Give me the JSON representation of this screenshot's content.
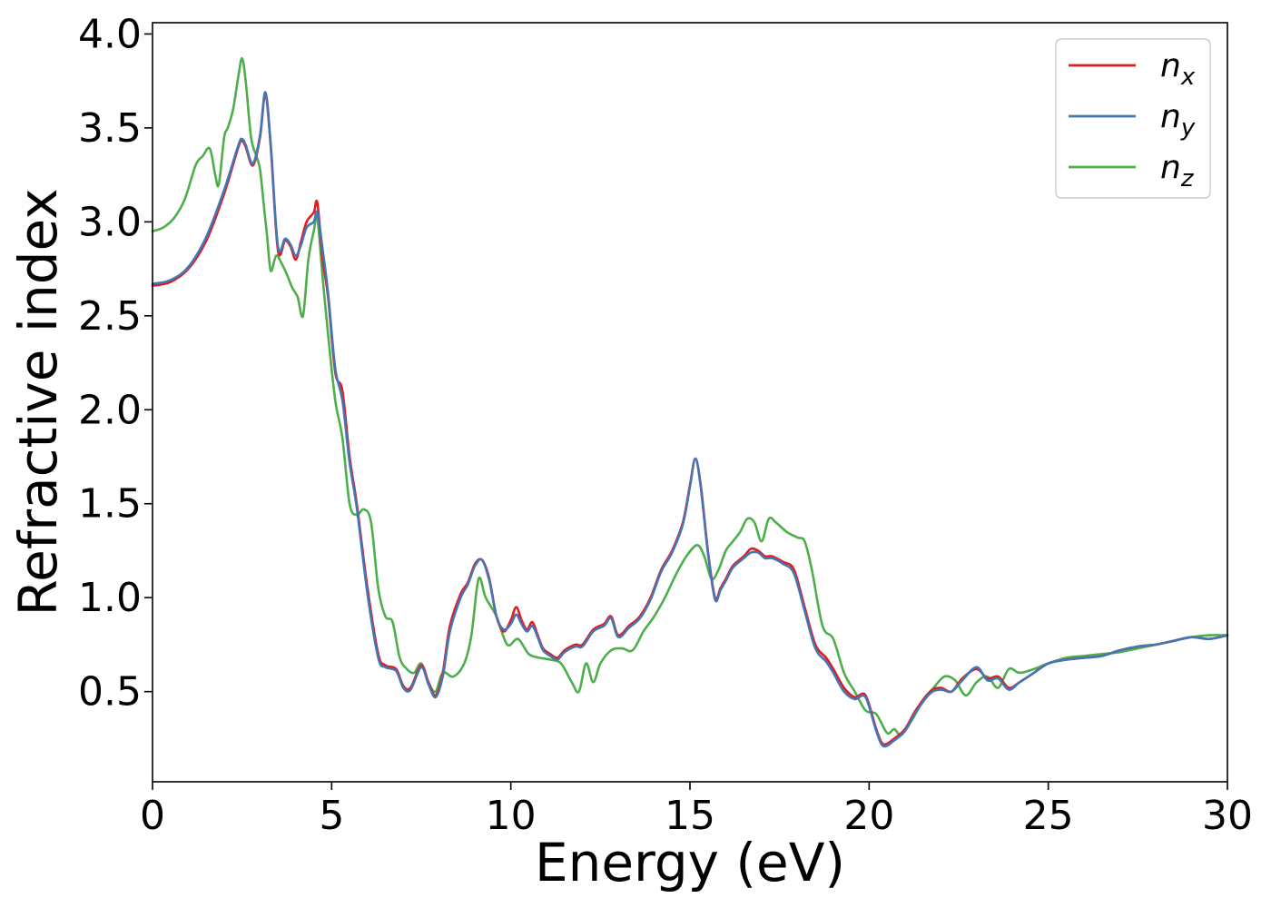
{
  "chart_data": {
    "type": "line",
    "title": "",
    "xlabel": "Energy (eV)",
    "ylabel": "Refractive index",
    "xlim": [
      0,
      30
    ],
    "ylim": [
      0.02,
      4.06
    ],
    "xticks": [
      0,
      5,
      10,
      15,
      20,
      25,
      30
    ],
    "yticks": [
      0.5,
      1.0,
      1.5,
      2.0,
      2.5,
      3.0,
      3.5,
      4.0
    ],
    "grid": false,
    "legend_position": "top-right",
    "series": [
      {
        "name": "n_x",
        "legend_base": "n",
        "legend_sub": "x",
        "color": "#e41a1c",
        "x": [
          0,
          0.5,
          1.0,
          1.5,
          2.0,
          2.4,
          2.5,
          2.6,
          2.8,
          3.0,
          3.15,
          3.3,
          3.5,
          3.7,
          3.85,
          4.0,
          4.15,
          4.3,
          4.5,
          4.6,
          4.75,
          4.9,
          5.1,
          5.3,
          5.5,
          5.7,
          6.0,
          6.3,
          6.5,
          6.8,
          7.0,
          7.2,
          7.5,
          7.7,
          7.9,
          8.1,
          8.3,
          8.6,
          8.8,
          9.0,
          9.2,
          9.4,
          9.6,
          9.8,
          10.0,
          10.15,
          10.3,
          10.45,
          10.6,
          10.75,
          10.9,
          11.1,
          11.3,
          11.5,
          11.8,
          12.0,
          12.3,
          12.6,
          12.8,
          13.0,
          13.3,
          13.6,
          13.9,
          14.2,
          14.5,
          14.8,
          15.0,
          15.15,
          15.3,
          15.5,
          15.7,
          15.85,
          16.0,
          16.2,
          16.5,
          16.7,
          16.9,
          17.1,
          17.3,
          17.6,
          17.9,
          18.2,
          18.5,
          18.8,
          19.0,
          19.3,
          19.6,
          19.9,
          20.2,
          20.4,
          20.7,
          21.0,
          21.3,
          21.7,
          22.0,
          22.3,
          22.6,
          23.0,
          23.3,
          23.6,
          23.9,
          24.2,
          24.6,
          25.0,
          25.5,
          26.0,
          26.5,
          27.0,
          27.5,
          28.0,
          28.5,
          29.0,
          29.5,
          30.0
        ],
        "y": [
          2.66,
          2.68,
          2.75,
          2.9,
          3.15,
          3.4,
          3.43,
          3.4,
          3.3,
          3.45,
          3.68,
          3.4,
          2.85,
          2.9,
          2.87,
          2.8,
          2.9,
          3.0,
          3.05,
          3.1,
          2.8,
          2.6,
          2.2,
          2.1,
          1.75,
          1.5,
          1.05,
          0.7,
          0.64,
          0.62,
          0.53,
          0.52,
          0.64,
          0.55,
          0.48,
          0.6,
          0.85,
          1.02,
          1.08,
          1.18,
          1.2,
          1.1,
          0.9,
          0.82,
          0.88,
          0.95,
          0.88,
          0.83,
          0.87,
          0.8,
          0.73,
          0.7,
          0.68,
          0.72,
          0.75,
          0.75,
          0.83,
          0.86,
          0.9,
          0.8,
          0.85,
          0.9,
          1.0,
          1.15,
          1.25,
          1.4,
          1.6,
          1.74,
          1.6,
          1.25,
          1.0,
          1.05,
          1.1,
          1.17,
          1.22,
          1.26,
          1.25,
          1.22,
          1.22,
          1.19,
          1.15,
          0.95,
          0.75,
          0.68,
          0.62,
          0.52,
          0.47,
          0.48,
          0.3,
          0.22,
          0.25,
          0.3,
          0.4,
          0.5,
          0.52,
          0.5,
          0.57,
          0.62,
          0.57,
          0.58,
          0.52,
          0.55,
          0.6,
          0.65,
          0.67,
          0.68,
          0.69,
          0.72,
          0.74,
          0.75,
          0.77,
          0.79,
          0.78,
          0.8
        ]
      },
      {
        "name": "n_y",
        "legend_base": "n",
        "legend_sub": "y",
        "color": "#4575b4",
        "x": [
          0,
          0.5,
          1.0,
          1.5,
          2.0,
          2.4,
          2.5,
          2.6,
          2.8,
          3.0,
          3.15,
          3.3,
          3.5,
          3.7,
          3.85,
          4.0,
          4.15,
          4.3,
          4.5,
          4.6,
          4.75,
          4.9,
          5.1,
          5.3,
          5.5,
          5.7,
          6.0,
          6.3,
          6.5,
          6.8,
          7.0,
          7.2,
          7.5,
          7.7,
          7.9,
          8.1,
          8.3,
          8.6,
          8.8,
          9.0,
          9.2,
          9.4,
          9.6,
          9.8,
          10.0,
          10.15,
          10.3,
          10.45,
          10.6,
          10.75,
          10.9,
          11.1,
          11.3,
          11.5,
          11.8,
          12.0,
          12.3,
          12.6,
          12.8,
          13.0,
          13.3,
          13.6,
          13.9,
          14.2,
          14.5,
          14.8,
          15.0,
          15.15,
          15.3,
          15.5,
          15.7,
          15.85,
          16.0,
          16.2,
          16.5,
          16.7,
          16.9,
          17.1,
          17.3,
          17.6,
          17.9,
          18.2,
          18.5,
          18.8,
          19.0,
          19.3,
          19.6,
          19.9,
          20.2,
          20.4,
          20.7,
          21.0,
          21.3,
          21.7,
          22.0,
          22.3,
          22.6,
          23.0,
          23.3,
          23.6,
          23.9,
          24.2,
          24.6,
          25.0,
          25.5,
          26.0,
          26.5,
          27.0,
          27.5,
          28.0,
          28.5,
          29.0,
          29.5,
          30.0
        ],
        "y": [
          2.67,
          2.69,
          2.76,
          2.92,
          3.17,
          3.41,
          3.44,
          3.41,
          3.31,
          3.46,
          3.69,
          3.41,
          2.87,
          2.91,
          2.88,
          2.82,
          2.88,
          2.97,
          3.0,
          3.05,
          2.85,
          2.62,
          2.22,
          2.05,
          1.72,
          1.48,
          1.02,
          0.68,
          0.63,
          0.61,
          0.52,
          0.51,
          0.63,
          0.54,
          0.47,
          0.58,
          0.82,
          1.0,
          1.07,
          1.17,
          1.2,
          1.09,
          0.9,
          0.83,
          0.86,
          0.91,
          0.86,
          0.82,
          0.85,
          0.79,
          0.72,
          0.69,
          0.67,
          0.71,
          0.74,
          0.74,
          0.82,
          0.85,
          0.89,
          0.79,
          0.84,
          0.89,
          0.99,
          1.14,
          1.24,
          1.39,
          1.59,
          1.74,
          1.59,
          1.24,
          0.99,
          1.04,
          1.09,
          1.16,
          1.21,
          1.24,
          1.24,
          1.21,
          1.21,
          1.18,
          1.13,
          0.93,
          0.73,
          0.66,
          0.6,
          0.5,
          0.46,
          0.47,
          0.29,
          0.21,
          0.24,
          0.29,
          0.39,
          0.49,
          0.51,
          0.5,
          0.56,
          0.63,
          0.56,
          0.57,
          0.51,
          0.55,
          0.6,
          0.65,
          0.67,
          0.68,
          0.69,
          0.72,
          0.74,
          0.75,
          0.77,
          0.79,
          0.78,
          0.8
        ]
      },
      {
        "name": "n_z",
        "legend_base": "n",
        "legend_sub": "z",
        "color": "#4daf4a",
        "x": [
          0,
          0.3,
          0.6,
          0.9,
          1.2,
          1.4,
          1.6,
          1.75,
          1.85,
          2.0,
          2.1,
          2.25,
          2.4,
          2.5,
          2.6,
          2.75,
          2.9,
          3.0,
          3.1,
          3.2,
          3.3,
          3.45,
          3.6,
          3.75,
          3.9,
          4.05,
          4.2,
          4.35,
          4.5,
          4.6,
          4.75,
          4.9,
          5.1,
          5.3,
          5.5,
          5.7,
          5.9,
          6.1,
          6.3,
          6.5,
          6.7,
          6.9,
          7.1,
          7.3,
          7.5,
          7.7,
          7.9,
          8.1,
          8.4,
          8.7,
          8.9,
          9.1,
          9.3,
          9.6,
          9.9,
          10.2,
          10.5,
          10.8,
          11.1,
          11.4,
          11.7,
          11.9,
          12.1,
          12.3,
          12.5,
          12.8,
          13.1,
          13.4,
          13.7,
          14.0,
          14.3,
          14.6,
          14.9,
          15.2,
          15.4,
          15.6,
          15.8,
          16.0,
          16.2,
          16.4,
          16.6,
          16.8,
          17.0,
          17.2,
          17.4,
          17.7,
          18.0,
          18.2,
          18.4,
          18.7,
          19.0,
          19.3,
          19.6,
          19.9,
          20.2,
          20.5,
          20.7,
          20.9,
          21.2,
          21.5,
          21.8,
          22.1,
          22.4,
          22.7,
          23.0,
          23.3,
          23.6,
          23.9,
          24.2,
          24.6,
          25.0,
          25.5,
          26.0,
          26.5,
          27.0,
          27.5,
          28.0,
          28.5,
          29.0,
          29.5,
          30.0
        ],
        "y": [
          2.95,
          2.97,
          3.02,
          3.12,
          3.3,
          3.35,
          3.39,
          3.25,
          3.2,
          3.45,
          3.5,
          3.6,
          3.78,
          3.87,
          3.75,
          3.45,
          3.35,
          3.28,
          3.1,
          2.92,
          2.74,
          2.82,
          2.78,
          2.72,
          2.65,
          2.6,
          2.5,
          2.8,
          2.95,
          3.02,
          2.7,
          2.4,
          2.05,
          1.85,
          1.5,
          1.44,
          1.47,
          1.4,
          1.05,
          0.9,
          0.87,
          0.68,
          0.62,
          0.6,
          0.65,
          0.55,
          0.5,
          0.6,
          0.58,
          0.65,
          0.8,
          1.1,
          1.0,
          0.9,
          0.75,
          0.78,
          0.7,
          0.68,
          0.67,
          0.65,
          0.55,
          0.5,
          0.65,
          0.55,
          0.65,
          0.72,
          0.73,
          0.72,
          0.82,
          0.9,
          1.0,
          1.12,
          1.22,
          1.28,
          1.22,
          1.1,
          1.15,
          1.25,
          1.3,
          1.35,
          1.42,
          1.4,
          1.3,
          1.42,
          1.4,
          1.35,
          1.32,
          1.3,
          1.15,
          0.85,
          0.78,
          0.6,
          0.5,
          0.4,
          0.38,
          0.28,
          0.3,
          0.27,
          0.35,
          0.45,
          0.52,
          0.58,
          0.56,
          0.48,
          0.55,
          0.58,
          0.52,
          0.62,
          0.6,
          0.62,
          0.65,
          0.68,
          0.69,
          0.7,
          0.71,
          0.73,
          0.75,
          0.77,
          0.79,
          0.8,
          0.8
        ]
      }
    ]
  }
}
